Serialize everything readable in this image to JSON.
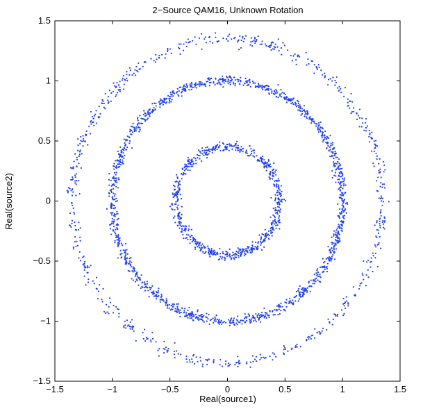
{
  "chart_data": {
    "type": "scatter",
    "title": "2−Source QAM16, Unknown Rotation",
    "xlabel": "Real(source1)",
    "ylabel": "Real(source2)",
    "xlim": [
      -1.5,
      1.5
    ],
    "ylim": [
      -1.5,
      1.5
    ],
    "xticks": [
      -1.5,
      -1,
      -0.5,
      0,
      0.5,
      1,
      1.5
    ],
    "yticks": [
      -1.5,
      -1,
      -0.5,
      0,
      0.5,
      1,
      1.5
    ],
    "xtick_labels": [
      "−1.5",
      "−1",
      "−0.5",
      "0",
      "0.5",
      "1",
      "1.5"
    ],
    "ytick_labels": [
      "−1.5",
      "−1",
      "−0.5",
      "0",
      "0.5",
      "1",
      "1.5"
    ],
    "grid": false,
    "marker_color": "#1f3ff0",
    "series": [
      {
        "shape": "ring",
        "center": [
          0,
          0
        ],
        "radius": 0.45,
        "spread": 0.02,
        "points": 700
      },
      {
        "shape": "ring",
        "center": [
          0,
          0
        ],
        "radius": 1.0,
        "spread": 0.02,
        "points": 1400
      },
      {
        "shape": "ring",
        "center": [
          0,
          0
        ],
        "radius": 1.35,
        "spread": 0.025,
        "points": 700
      }
    ]
  }
}
